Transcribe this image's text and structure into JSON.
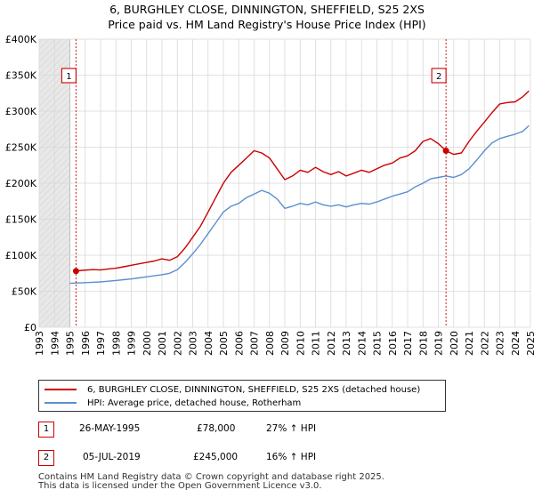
{
  "title_line1": "6, BURGHLEY CLOSE, DINNINGTON, SHEFFIELD, S25 2XS",
  "title_line2": "Price paid vs. HM Land Registry's House Price Index (HPI)",
  "legend": {
    "property": "6, BURGHLEY CLOSE, DINNINGTON, SHEFFIELD, S25 2XS (detached house)",
    "hpi": "HPI: Average price, detached house, Rotherham"
  },
  "colors": {
    "property": "#cc0000",
    "hpi": "#5b8fd0",
    "shade": "#e8e8e8",
    "grid": "#d8d8d8"
  },
  "sales": [
    {
      "num": "1",
      "date": "26-MAY-1995",
      "price": "£78,000",
      "hpi_change": "27% ↑ HPI"
    },
    {
      "num": "2",
      "date": "05-JUL-2019",
      "price": "£245,000",
      "hpi_change": "16% ↑ HPI"
    }
  ],
  "footer": {
    "line1": "Contains HM Land Registry data © Crown copyright and database right 2025.",
    "line2": "This data is licensed under the Open Government Licence v3.0."
  },
  "chart_data": {
    "type": "line",
    "title": "6, BURGHLEY CLOSE, DINNINGTON, SHEFFIELD, S25 2XS",
    "subtitle": "Price paid vs. HM Land Registry's House Price Index (HPI)",
    "xlabel": "",
    "ylabel": "",
    "xlim": [
      1993,
      2025
    ],
    "ylim": [
      0,
      400000
    ],
    "x_ticks": [
      1993,
      1994,
      1995,
      1996,
      1997,
      1998,
      1999,
      2000,
      2001,
      2002,
      2003,
      2004,
      2005,
      2006,
      2007,
      2008,
      2009,
      2010,
      2011,
      2012,
      2013,
      2014,
      2015,
      2016,
      2017,
      2018,
      2019,
      2020,
      2021,
      2022,
      2023,
      2024,
      2025
    ],
    "y_ticks": [
      {
        "value": 0,
        "label": "£0"
      },
      {
        "value": 50000,
        "label": "£50K"
      },
      {
        "value": 100000,
        "label": "£100K"
      },
      {
        "value": 150000,
        "label": "£150K"
      },
      {
        "value": 200000,
        "label": "£200K"
      },
      {
        "value": 250000,
        "label": "£250K"
      },
      {
        "value": 300000,
        "label": "£300K"
      },
      {
        "value": 350000,
        "label": "£350K"
      },
      {
        "value": 400000,
        "label": "£400K"
      }
    ],
    "grid": true,
    "shaded_before": 1995,
    "markers": [
      {
        "label": "1",
        "x": 1995.4,
        "y": 78000
      },
      {
        "label": "2",
        "x": 2019.5,
        "y": 245000
      }
    ],
    "series": [
      {
        "name": "6, BURGHLEY CLOSE, DINNINGTON, SHEFFIELD, S25 2XS (detached house)",
        "color": "#cc0000",
        "points": [
          [
            1995.4,
            78000
          ],
          [
            1995.8,
            79000
          ],
          [
            1996.5,
            80000
          ],
          [
            1997.0,
            79500
          ],
          [
            1997.5,
            81000
          ],
          [
            1998.0,
            82000
          ],
          [
            1998.5,
            84000
          ],
          [
            1999.0,
            86000
          ],
          [
            1999.5,
            88000
          ],
          [
            2000.0,
            90000
          ],
          [
            2000.5,
            92000
          ],
          [
            2001.0,
            95000
          ],
          [
            2001.5,
            93000
          ],
          [
            2002.0,
            98000
          ],
          [
            2002.5,
            110000
          ],
          [
            2003.0,
            125000
          ],
          [
            2003.5,
            140000
          ],
          [
            2004.0,
            160000
          ],
          [
            2004.5,
            180000
          ],
          [
            2005.0,
            200000
          ],
          [
            2005.5,
            215000
          ],
          [
            2006.0,
            225000
          ],
          [
            2006.5,
            235000
          ],
          [
            2007.0,
            245000
          ],
          [
            2007.5,
            242000
          ],
          [
            2008.0,
            235000
          ],
          [
            2008.5,
            220000
          ],
          [
            2009.0,
            205000
          ],
          [
            2009.5,
            210000
          ],
          [
            2010.0,
            218000
          ],
          [
            2010.5,
            215000
          ],
          [
            2011.0,
            222000
          ],
          [
            2011.5,
            216000
          ],
          [
            2012.0,
            212000
          ],
          [
            2012.5,
            216000
          ],
          [
            2013.0,
            210000
          ],
          [
            2013.5,
            214000
          ],
          [
            2014.0,
            218000
          ],
          [
            2014.5,
            215000
          ],
          [
            2015.0,
            220000
          ],
          [
            2015.5,
            225000
          ],
          [
            2016.0,
            228000
          ],
          [
            2016.5,
            235000
          ],
          [
            2017.0,
            238000
          ],
          [
            2017.5,
            245000
          ],
          [
            2018.0,
            258000
          ],
          [
            2018.5,
            262000
          ],
          [
            2019.0,
            255000
          ],
          [
            2019.5,
            245000
          ],
          [
            2020.0,
            240000
          ],
          [
            2020.5,
            242000
          ],
          [
            2021.0,
            258000
          ],
          [
            2021.5,
            272000
          ],
          [
            2022.0,
            285000
          ],
          [
            2022.5,
            298000
          ],
          [
            2023.0,
            310000
          ],
          [
            2023.5,
            312000
          ],
          [
            2024.0,
            313000
          ],
          [
            2024.5,
            320000
          ],
          [
            2024.9,
            328000
          ]
        ]
      },
      {
        "name": "HPI: Average price, detached house, Rotherham",
        "color": "#5b8fd0",
        "points": [
          [
            1995.0,
            61000
          ],
          [
            1995.5,
            61500
          ],
          [
            1996.0,
            62000
          ],
          [
            1996.5,
            62500
          ],
          [
            1997.0,
            63000
          ],
          [
            1997.5,
            64000
          ],
          [
            1998.0,
            65000
          ],
          [
            1998.5,
            66000
          ],
          [
            1999.0,
            67000
          ],
          [
            1999.5,
            68500
          ],
          [
            2000.0,
            70000
          ],
          [
            2000.5,
            71500
          ],
          [
            2001.0,
            73000
          ],
          [
            2001.5,
            75000
          ],
          [
            2002.0,
            80000
          ],
          [
            2002.5,
            90000
          ],
          [
            2003.0,
            102000
          ],
          [
            2003.5,
            115000
          ],
          [
            2004.0,
            130000
          ],
          [
            2004.5,
            145000
          ],
          [
            2005.0,
            160000
          ],
          [
            2005.5,
            168000
          ],
          [
            2006.0,
            172000
          ],
          [
            2006.5,
            180000
          ],
          [
            2007.0,
            185000
          ],
          [
            2007.5,
            190000
          ],
          [
            2008.0,
            186000
          ],
          [
            2008.5,
            178000
          ],
          [
            2009.0,
            165000
          ],
          [
            2009.5,
            168000
          ],
          [
            2010.0,
            172000
          ],
          [
            2010.5,
            170000
          ],
          [
            2011.0,
            174000
          ],
          [
            2011.5,
            170000
          ],
          [
            2012.0,
            168000
          ],
          [
            2012.5,
            170000
          ],
          [
            2013.0,
            167000
          ],
          [
            2013.5,
            170000
          ],
          [
            2014.0,
            172000
          ],
          [
            2014.5,
            171000
          ],
          [
            2015.0,
            174000
          ],
          [
            2015.5,
            178000
          ],
          [
            2016.0,
            182000
          ],
          [
            2016.5,
            185000
          ],
          [
            2017.0,
            188000
          ],
          [
            2017.5,
            195000
          ],
          [
            2018.0,
            200000
          ],
          [
            2018.5,
            206000
          ],
          [
            2019.0,
            208000
          ],
          [
            2019.5,
            210000
          ],
          [
            2020.0,
            208000
          ],
          [
            2020.5,
            212000
          ],
          [
            2021.0,
            220000
          ],
          [
            2021.5,
            232000
          ],
          [
            2022.0,
            245000
          ],
          [
            2022.5,
            256000
          ],
          [
            2023.0,
            262000
          ],
          [
            2023.5,
            265000
          ],
          [
            2024.0,
            268000
          ],
          [
            2024.5,
            272000
          ],
          [
            2024.9,
            280000
          ]
        ]
      }
    ]
  }
}
